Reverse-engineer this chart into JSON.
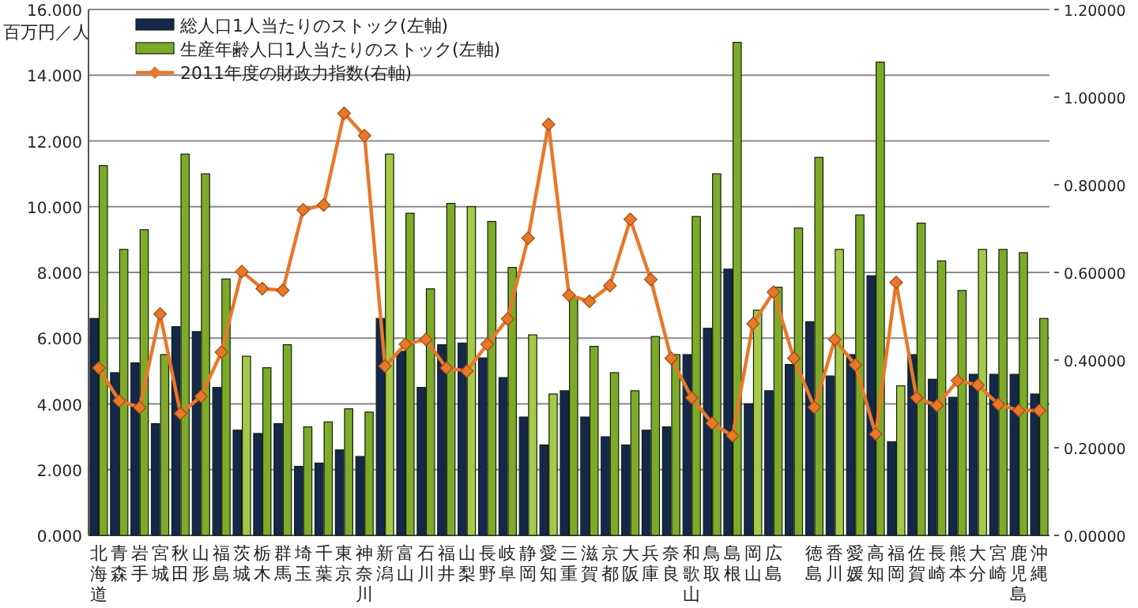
{
  "chart_data": {
    "type": "bar",
    "ylabel": "百万円／人",
    "categories": [
      "北海道",
      "青森",
      "岩手",
      "宮城",
      "秋田",
      "山形",
      "福島",
      "茨城",
      "栃木",
      "群馬",
      "埼玉",
      "千葉",
      "東京",
      "神奈川",
      "新潟",
      "富山",
      "石川",
      "福井",
      "山梨",
      "長野",
      "岐阜",
      "静岡",
      "愛知",
      "三重",
      "滋賀",
      "京都",
      "大阪",
      "兵庫",
      "奈良",
      "和歌山",
      "鳥取",
      "島根",
      "岡山",
      "広島",
      null,
      "徳島",
      "香川",
      "愛媛",
      "高知",
      "福岡",
      "佐賀",
      "長崎",
      "熊本",
      "大分",
      "宮崎",
      "鹿児島",
      "沖縄"
    ],
    "series": [
      {
        "name": "総人口1人当たりのストック(左軸)",
        "color": "#14284e",
        "values": [
          6.6,
          4.95,
          5.25,
          3.4,
          6.35,
          6.2,
          4.5,
          3.2,
          3.1,
          3.4,
          2.1,
          2.2,
          2.6,
          2.4,
          6.6,
          5.6,
          4.5,
          5.8,
          5.85,
          5.4,
          4.8,
          3.6,
          2.75,
          4.4,
          3.6,
          3.0,
          2.75,
          3.2,
          3.3,
          5.5,
          6.3,
          8.1,
          4.0,
          4.4,
          5.2,
          6.5,
          4.85,
          5.5,
          7.9,
          2.85,
          5.5,
          4.75,
          4.2,
          4.9,
          4.9,
          4.9,
          4.3
        ]
      },
      {
        "name": "生産年齢人口1人当たりのストック(左軸)",
        "color": "#7eaa2a",
        "colors": [
          "#7eaa2a",
          "#7eaa2a",
          "#7eaa2a",
          "#7eaa2a",
          "#7eaa2a",
          "#7eaa2a",
          "#7eaa2a",
          "#a6c94a",
          "#7eaa2a",
          "#7eaa2a",
          "#7eaa2a",
          "#7eaa2a",
          "#7eaa2a",
          "#7eaa2a",
          "#a6c94a",
          "#7eaa2a",
          "#7eaa2a",
          "#7eaa2a",
          "#a6c94a",
          "#7eaa2a",
          "#7eaa2a",
          "#a6c94a",
          "#a6c94a",
          "#7eaa2a",
          "#7eaa2a",
          "#7eaa2a",
          "#7eaa2a",
          "#7eaa2a",
          "#7eaa2a",
          "#7eaa2a",
          "#7eaa2a",
          "#7eaa2a",
          "#a6c94a",
          "#7eaa2a",
          "#7eaa2a",
          "#7eaa2a",
          "#a6c94a",
          "#7eaa2a",
          "#7eaa2a",
          "#a6c94a",
          "#7eaa2a",
          "#7eaa2a",
          "#7eaa2a",
          "#a6c94a",
          "#7eaa2a",
          "#7eaa2a",
          "#7eaa2a"
        ],
        "values": [
          11.25,
          8.7,
          9.3,
          5.5,
          11.6,
          11.0,
          7.8,
          5.45,
          5.1,
          5.8,
          3.3,
          3.45,
          3.85,
          3.75,
          11.6,
          9.8,
          7.5,
          10.1,
          10.0,
          9.55,
          8.15,
          6.1,
          4.3,
          7.25,
          5.75,
          4.95,
          4.4,
          6.05,
          5.5,
          9.7,
          11.0,
          15.0,
          6.85,
          7.55,
          9.35,
          11.5,
          8.7,
          9.75,
          14.4,
          4.55,
          9.5,
          8.35,
          7.45,
          8.7,
          8.7,
          8.6,
          6.6
        ]
      },
      {
        "name": "2011年度の財政力指数(右軸)",
        "type": "line",
        "axis": "y2",
        "color": "#e8782a",
        "values": [
          0.382,
          0.307,
          0.292,
          0.505,
          0.278,
          0.317,
          0.418,
          0.602,
          0.563,
          0.559,
          0.743,
          0.754,
          0.963,
          0.912,
          0.386,
          0.436,
          0.447,
          0.382,
          0.375,
          0.436,
          0.494,
          0.678,
          0.938,
          0.548,
          0.534,
          0.57,
          0.721,
          0.584,
          0.404,
          0.314,
          0.256,
          0.227,
          0.483,
          0.555,
          0.404,
          0.292,
          0.447,
          0.389,
          0.231,
          0.577,
          0.314,
          0.296,
          0.353,
          0.343,
          0.299,
          0.285,
          0.285
        ]
      }
    ],
    "ylim": [
      0,
      16
    ],
    "yticks": [
      {
        "value": 0,
        "label": "0.000"
      },
      {
        "value": 2,
        "label": "2.000"
      },
      {
        "value": 4,
        "label": "4.000"
      },
      {
        "value": 6,
        "label": "6.000"
      },
      {
        "value": 8,
        "label": "8.000"
      },
      {
        "value": 10,
        "label": "10.000"
      },
      {
        "value": 12,
        "label": "12.000"
      },
      {
        "value": 14,
        "label": "14.000"
      },
      {
        "value": 16,
        "label": "16.000"
      }
    ],
    "y2lim": [
      0,
      1.2
    ],
    "y2ticks": [
      {
        "value": 0,
        "label": "0.00000"
      },
      {
        "value": 0.2,
        "label": "0.20000"
      },
      {
        "value": 0.4,
        "label": "0.40000"
      },
      {
        "value": 0.6,
        "label": "0.60000"
      },
      {
        "value": 0.8,
        "label": "0.80000"
      },
      {
        "value": 1.0,
        "label": "1.00000"
      },
      {
        "value": 1.2,
        "label": "1.20000"
      }
    ],
    "grid": "y",
    "legend": "top left",
    "marker": "diamond",
    "line_style": "solid"
  }
}
